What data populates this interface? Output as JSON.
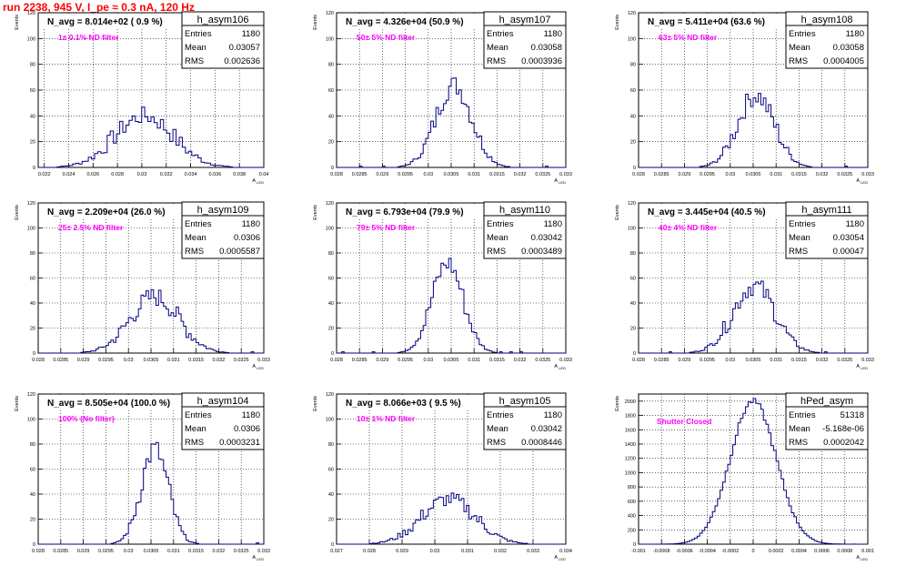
{
  "header": {
    "title": "run 2238,   945 V, I_pe ≈ 0.3 nA, 120 Hz"
  },
  "style": {
    "line_color": "#000080",
    "annotation_color": "#ff00ff",
    "title_color": "#ff0000",
    "grid_color": "#000000"
  },
  "chart_data": [
    {
      "type": "histogram",
      "name": "h_asym106",
      "nav": "N_avg = 8.014e+02 ( 0.9 %)",
      "filter": "1± 0.1% ND filter",
      "entries": "1180",
      "mean": "0.03057",
      "rms": "0.002636",
      "xlabel": "A_{LED}",
      "ylabel": "Events",
      "xlim": [
        0.0215,
        0.04
      ],
      "ylim": [
        0,
        120
      ],
      "xticks": [
        "0.022",
        "0.024",
        "0.026",
        "0.028",
        "0.03",
        "0.032",
        "0.034",
        "0.036",
        "0.038",
        "0.04"
      ],
      "yticks": [
        "0",
        "20",
        "40",
        "60",
        "80",
        "100",
        "120"
      ]
    },
    {
      "type": "histogram",
      "name": "h_asym107",
      "nav": "N_avg = 4.326e+04 (50.9 %)",
      "filter": "50± 5% ND filter",
      "entries": "1180",
      "mean": "0.03058",
      "rms": "0.0003936",
      "xlabel": "A_{LED}",
      "ylabel": "Events",
      "xlim": [
        0.028,
        0.033
      ],
      "ylim": [
        0,
        120
      ],
      "xticks": [
        "0.028",
        "0.0285",
        "0.029",
        "0.0295",
        "0.03",
        "0.0305",
        "0.031",
        "0.0315",
        "0.032",
        "0.0325",
        "0.033"
      ],
      "yticks": [
        "0",
        "20",
        "40",
        "60",
        "80",
        "100",
        "120"
      ]
    },
    {
      "type": "histogram",
      "name": "h_asym108",
      "nav": "N_avg = 5.411e+04 (63.6 %)",
      "filter": "63± 5% ND filter",
      "entries": "1180",
      "mean": "0.03058",
      "rms": "0.0004005",
      "xlabel": "A_{LED}",
      "ylabel": "Events",
      "xlim": [
        0.028,
        0.033
      ],
      "ylim": [
        0,
        120
      ],
      "xticks": [
        "0.028",
        "0.0285",
        "0.029",
        "0.0295",
        "0.03",
        "0.0305",
        "0.031",
        "0.0315",
        "0.032",
        "0.0325",
        "0.033"
      ],
      "yticks": [
        "0",
        "20",
        "40",
        "60",
        "80",
        "100",
        "120"
      ]
    },
    {
      "type": "histogram",
      "name": "h_asym109",
      "nav": "N_avg = 2.209e+04 (26.0 %)",
      "filter": "25± 2.5% ND filter",
      "entries": "1180",
      "mean": "0.0306",
      "rms": "0.0005587",
      "xlabel": "A_{LED}",
      "ylabel": "Events",
      "xlim": [
        0.028,
        0.033
      ],
      "ylim": [
        0,
        120
      ],
      "xticks": [
        "0.028",
        "0.0285",
        "0.029",
        "0.0295",
        "0.03",
        "0.0305",
        "0.031",
        "0.0315",
        "0.032",
        "0.0325",
        "0.033"
      ],
      "yticks": [
        "0",
        "20",
        "40",
        "60",
        "80",
        "100",
        "120"
      ]
    },
    {
      "type": "histogram",
      "name": "h_asym110",
      "nav": "N_avg = 6.793e+04 (79.9 %)",
      "filter": "79± 5% ND filter",
      "entries": "1180",
      "mean": "0.03042",
      "rms": "0.0003489",
      "xlabel": "A_{LED}",
      "ylabel": "Events",
      "xlim": [
        0.028,
        0.033
      ],
      "ylim": [
        0,
        120
      ],
      "xticks": [
        "0.028",
        "0.0285",
        "0.029",
        "0.0295",
        "0.03",
        "0.0305",
        "0.031",
        "0.0315",
        "0.032",
        "0.0325",
        "0.033"
      ],
      "yticks": [
        "0",
        "20",
        "40",
        "60",
        "80",
        "100",
        "120"
      ]
    },
    {
      "type": "histogram",
      "name": "h_asym111",
      "nav": "N_avg = 3.445e+04 (40.5 %)",
      "filter": "40± 4% ND filter",
      "entries": "1180",
      "mean": "0.03054",
      "rms": "0.00047",
      "xlabel": "A_{LED}",
      "ylabel": "Events",
      "xlim": [
        0.028,
        0.033
      ],
      "ylim": [
        0,
        120
      ],
      "xticks": [
        "0.028",
        "0.0285",
        "0.029",
        "0.0295",
        "0.03",
        "0.0305",
        "0.031",
        "0.0315",
        "0.032",
        "0.0325",
        "0.033"
      ],
      "yticks": [
        "0",
        "20",
        "40",
        "60",
        "80",
        "100",
        "120"
      ]
    },
    {
      "type": "histogram",
      "name": "h_asym104",
      "nav": "N_avg = 8.505e+04 (100.0 %)",
      "filter": "100% (No filter)",
      "entries": "1180",
      "mean": "0.0306",
      "rms": "0.0003231",
      "xlabel": "A_{LED}",
      "ylabel": "Events",
      "xlim": [
        0.028,
        0.033
      ],
      "ylim": [
        0,
        120
      ],
      "xticks": [
        "0.028",
        "0.0285",
        "0.029",
        "0.0295",
        "0.03",
        "0.0305",
        "0.031",
        "0.0315",
        "0.032",
        "0.0325",
        "0.033"
      ],
      "yticks": [
        "0",
        "20",
        "40",
        "60",
        "80",
        "100",
        "120"
      ]
    },
    {
      "type": "histogram",
      "name": "h_asym105",
      "nav": "N_avg = 8.066e+03 ( 9.5 %)",
      "filter": "10± 1% ND filter",
      "entries": "1180",
      "mean": "0.03042",
      "rms": "0.0008446",
      "xlabel": "A_{LED}",
      "ylabel": "Events",
      "xlim": [
        0.027,
        0.034
      ],
      "ylim": [
        0,
        120
      ],
      "xticks": [
        "0.027",
        "0.028",
        "0.029",
        "0.03",
        "0.031",
        "0.032",
        "0.033",
        "0.034"
      ],
      "yticks": [
        "0",
        "20",
        "40",
        "60",
        "80",
        "100",
        "120"
      ]
    },
    {
      "type": "histogram",
      "name": "hPed_asym",
      "nav": "",
      "filter": "Shutter Closed",
      "entries": "51318",
      "mean": "-5.168e-06",
      "rms": "0.0002042",
      "xlabel": "A_{LED}",
      "ylabel": "Events",
      "xlim": [
        -0.001,
        0.001
      ],
      "ylim": [
        0,
        2100
      ],
      "xticks": [
        "-0.001",
        "-0.0008",
        "-0.0006",
        "-0.0004",
        "-0.0002",
        "0",
        "0.0002",
        "0.0004",
        "0.0006",
        "0.0008",
        "0.001"
      ],
      "yticks": [
        "0",
        "200",
        "400",
        "600",
        "800",
        "1000",
        "1200",
        "1400",
        "1600",
        "1800",
        "2000"
      ]
    }
  ]
}
